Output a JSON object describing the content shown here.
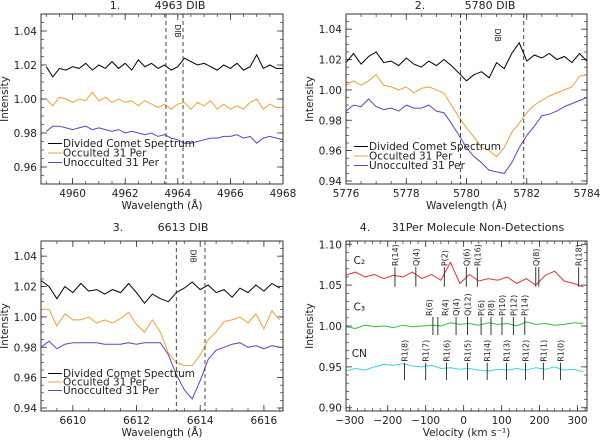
{
  "chart_data": [
    {
      "type": "line",
      "panel_number": "1.",
      "title": "4963 DIB",
      "xlabel": "Wavelength (Å)",
      "ylabel": "Intensity",
      "xlim": [
        4958.8,
        4968
      ],
      "ylim": [
        0.95,
        1.05
      ],
      "xticks": [
        4960,
        4962,
        4964,
        4966,
        4968
      ],
      "xtick_labels": [
        "4960",
        "4962",
        "4964",
        "4966",
        "4968"
      ],
      "xminor": 0.5,
      "yticks": [
        0.96,
        0.98,
        1.0,
        1.02,
        1.04
      ],
      "ytick_labels": [
        "0.96",
        "0.98",
        "1.00",
        "1.02",
        "1.04"
      ],
      "yminor": 0.005,
      "dib_lines": [
        4963.55,
        4964.2
      ],
      "dib_label": "DIB",
      "dib_label_pos": [
        4163.9,
        1.04
      ],
      "series": [
        {
          "name": "Divided Comet Spectrum",
          "color": "#000000",
          "x_start": 4959,
          "x_step": 0.25,
          "values": [
            1.019,
            1.013,
            1.018,
            1.017,
            1.019,
            1.018,
            1.021,
            1.017,
            1.02,
            1.018,
            1.022,
            1.018,
            1.021,
            1.017,
            1.023,
            1.019,
            1.021,
            1.018,
            1.02,
            1.017,
            1.019,
            1.024,
            1.022,
            1.02,
            1.021,
            1.019,
            1.017,
            1.02,
            1.018,
            1.021,
            1.017,
            1.019,
            1.026,
            1.018,
            1.02,
            1.018,
            1.018
          ]
        },
        {
          "name": "Occulted 31 Per",
          "color": "#f5a030",
          "x_start": 4959,
          "x_step": 0.25,
          "values": [
            1.0,
            0.996,
            1.001,
            1.0,
            0.998,
            1.0,
            0.999,
            1.004,
            0.999,
            1.001,
            0.998,
            1.0,
            0.998,
            0.999,
            0.996,
            0.999,
            0.997,
            0.995,
            0.997,
            0.994,
            0.997,
            0.998,
            0.994,
            0.998,
            0.996,
            0.999,
            0.994,
            0.997,
            0.994,
            0.996,
            0.994,
            0.998,
            1.0,
            0.994,
            0.997,
            0.995,
            0.995
          ]
        },
        {
          "name": "Unocculted 31 Per",
          "color": "#6a3cc8",
          "x_start": 4959,
          "x_step": 0.25,
          "values": [
            0.981,
            0.984,
            0.984,
            0.983,
            0.982,
            0.983,
            0.984,
            0.982,
            0.983,
            0.982,
            0.981,
            0.982,
            0.98,
            0.981,
            0.98,
            0.979,
            0.98,
            0.978,
            0.979,
            0.977,
            0.976,
            0.974,
            0.974,
            0.975,
            0.976,
            0.977,
            0.977,
            0.978,
            0.978,
            0.979,
            0.977,
            0.978,
            0.974,
            0.977,
            0.978,
            0.977,
            0.976
          ]
        }
      ]
    },
    {
      "type": "line",
      "panel_number": "2.",
      "title": "5780 DIB",
      "xlabel": "Wavelength (Å)",
      "ylabel": "Intensity",
      "xlim": [
        5776,
        5784
      ],
      "ylim": [
        0.938,
        1.05
      ],
      "xticks": [
        5776,
        5778,
        5780,
        5782,
        5784
      ],
      "xtick_labels": [
        "5776",
        "5778",
        "5780",
        "5782",
        "5784"
      ],
      "xminor": 0.5,
      "yticks": [
        0.94,
        0.96,
        0.98,
        1.0,
        1.02,
        1.04
      ],
      "ytick_labels": [
        "0.94",
        "0.96",
        "0.98",
        "1.00",
        "1.02",
        "1.04"
      ],
      "yminor": 0.005,
      "dib_lines": [
        5779.8,
        5781.9
      ],
      "dib_label": "DIB",
      "series": [
        {
          "name": "Divided Comet Spectrum",
          "color": "#000000",
          "x_start": 5776,
          "x_step": 0.25,
          "values": [
            1.018,
            1.024,
            1.017,
            1.022,
            1.025,
            1.018,
            1.019,
            1.016,
            1.021,
            1.017,
            1.015,
            1.019,
            1.016,
            1.02,
            1.016,
            1.011,
            1.006,
            1.01,
            1.012,
            1.008,
            1.018,
            1.014,
            1.024,
            1.031,
            1.019,
            1.023,
            1.021,
            1.024,
            1.02,
            1.022,
            1.018,
            1.024,
            1.019
          ]
        },
        {
          "name": "Occulted 31 Per",
          "color": "#f5a030",
          "x_start": 5776,
          "x_step": 0.25,
          "values": [
            1.003,
            1.006,
            1.003,
            1.006,
            1.01,
            1.003,
            1.002,
            1.0,
            1.002,
            0.998,
            1.001,
            1.002,
            1.0,
            0.998,
            0.99,
            0.982,
            0.975,
            0.969,
            0.962,
            0.96,
            0.956,
            0.962,
            0.972,
            0.978,
            0.985,
            0.99,
            0.993,
            0.996,
            0.998,
            1.0,
            1.002,
            1.009,
            1.01
          ]
        },
        {
          "name": "Unocculted 31 Per",
          "color": "#6a3cc8",
          "x_start": 5776,
          "x_step": 0.25,
          "values": [
            0.986,
            0.99,
            0.989,
            0.994,
            0.989,
            0.987,
            0.988,
            0.986,
            0.99,
            0.988,
            0.988,
            0.99,
            0.986,
            0.985,
            0.978,
            0.97,
            0.962,
            0.956,
            0.952,
            0.947,
            0.946,
            0.945,
            0.952,
            0.962,
            0.97,
            0.976,
            0.983,
            0.984,
            0.986,
            0.989,
            0.991,
            0.993,
            0.995
          ]
        }
      ]
    },
    {
      "type": "line",
      "panel_number": "3.",
      "title": "6613 DIB",
      "xlabel": "Wavelength (Å)",
      "ylabel": "Intensity",
      "xlim": [
        6609,
        6616.6
      ],
      "ylim": [
        0.938,
        1.05
      ],
      "xticks": [
        6610,
        6612,
        6614,
        6616
      ],
      "xtick_labels": [
        "6610",
        "6612",
        "6614",
        "6616"
      ],
      "xminor": 0.5,
      "yticks": [
        0.94,
        0.96,
        0.98,
        1.0,
        1.02,
        1.04
      ],
      "ytick_labels": [
        "0.94",
        "0.96",
        "0.98",
        "1.00",
        "1.02",
        "1.04"
      ],
      "yminor": 0.005,
      "dib_lines": [
        6613.25,
        6614.15
      ],
      "dib_label": "DIB",
      "series": [
        {
          "name": "Divided Comet Spectrum",
          "color": "#000000",
          "x_start": 6609,
          "x_step": 0.25,
          "values": [
            1.024,
            1.02,
            1.012,
            1.02,
            1.016,
            1.022,
            1.017,
            1.018,
            1.015,
            1.018,
            1.016,
            1.022,
            1.016,
            1.009,
            1.015,
            1.012,
            1.01,
            1.016,
            1.019,
            1.023,
            1.018,
            1.021,
            1.016,
            1.018,
            1.013,
            1.019,
            1.016,
            1.021,
            1.017,
            1.022,
            1.019
          ]
        },
        {
          "name": "Occulted 31 Per",
          "color": "#f5a030",
          "x_start": 6609,
          "x_step": 0.25,
          "values": [
            1.005,
            1.005,
            0.994,
            1.002,
            0.998,
            0.998,
            1.0,
            0.996,
            0.998,
            0.996,
            0.999,
            1.003,
            0.995,
            0.99,
            0.998,
            0.99,
            0.976,
            0.97,
            0.968,
            0.968,
            0.975,
            0.985,
            0.99,
            0.997,
            0.998,
            1.0,
            0.996,
            1.002,
            0.992,
            1.004,
            0.998
          ]
        },
        {
          "name": "Unocculted 31 Per",
          "color": "#6a3cc8",
          "x_start": 6609,
          "x_step": 0.25,
          "values": [
            0.98,
            0.984,
            0.979,
            0.982,
            0.983,
            0.983,
            0.983,
            0.983,
            0.982,
            0.982,
            0.982,
            0.983,
            0.982,
            0.983,
            0.983,
            0.983,
            0.975,
            0.962,
            0.952,
            0.946,
            0.958,
            0.972,
            0.978,
            0.98,
            0.982,
            0.983,
            0.98,
            0.981,
            0.979,
            0.981,
            0.98
          ]
        }
      ]
    },
    {
      "type": "line",
      "panel_number": "4.",
      "title": "31Per Molecule Non-Detections",
      "xlabel": "Velocity (km s⁻¹)",
      "ylabel": "Intensity",
      "xlim": [
        -310,
        325
      ],
      "ylim": [
        0.896,
        1.104
      ],
      "xticks": [
        -300,
        -200,
        -100,
        0,
        100,
        200,
        300
      ],
      "xtick_labels": [
        "−300",
        "−200",
        "−100",
        "0",
        "100",
        "200",
        "300"
      ],
      "xminor": 20,
      "yticks": [
        0.9,
        0.95,
        1.0,
        1.05,
        1.1
      ],
      "ytick_labels": [
        "0.90",
        "0.95",
        "1.00",
        "1.05",
        "1.10"
      ],
      "yminor": 0.01,
      "series": [
        {
          "name": "C2",
          "color": "#e8303a",
          "x_start": -310,
          "x_step": 25,
          "values": [
            1.062,
            1.066,
            1.06,
            1.063,
            1.058,
            1.062,
            1.06,
            1.066,
            1.058,
            1.063,
            1.056,
            1.078,
            1.052,
            1.063,
            1.055,
            1.058,
            1.056,
            1.06,
            1.052,
            1.058,
            1.05,
            1.062,
            1.067,
            1.055,
            1.052,
            1.048
          ]
        },
        {
          "name": "C3",
          "color": "#30c030",
          "x_start": -310,
          "x_step": 25,
          "values": [
            0.999,
            0.997,
            1.001,
            0.999,
            1.0,
            0.998,
            1.001,
            0.999,
            1.0,
            1.001,
            1.0,
            1.004,
            1.002,
            1.003,
            1.001,
            1.004,
            1.002,
            1.003,
            1.0,
            1.005,
            1.002,
            1.003,
            1.001,
            1.002,
            1.004,
            1.003
          ]
        },
        {
          "name": "CN",
          "color": "#30d8e0",
          "x_start": -310,
          "x_step": 25,
          "values": [
            0.945,
            0.948,
            0.946,
            0.95,
            0.953,
            0.952,
            0.954,
            0.951,
            0.95,
            0.952,
            0.948,
            0.949,
            0.947,
            0.948,
            0.946,
            0.945,
            0.947,
            0.946,
            0.948,
            0.946,
            0.949,
            0.947,
            0.95,
            0.946,
            0.947,
            0.944
          ]
        }
      ],
      "molecules": [
        {
          "label": "C₂",
          "label_pos": [
            -275,
            1.076
          ],
          "range": [
            1.048,
            1.072
          ],
          "lines": [
            {
              "label": "R(14)",
              "v": -181
            },
            {
              "label": "Q(4)",
              "v": -126
            },
            {
              "label": "P(2)",
              "v": -51
            },
            {
              "label": "Q(6)",
              "v": 7
            },
            {
              "label": "R(16)",
              "v": 36
            },
            {
              "label": "Q(8)",
              "v": 190
            },
            {
              "label": "",
              "v": 198
            },
            {
              "label": "R(18)",
              "v": 303
            }
          ]
        },
        {
          "label": "C₃",
          "label_pos": [
            -275,
            1.019
          ],
          "range": [
            0.989,
            1.011
          ],
          "lines": [
            {
              "label": "R(6)",
              "v": -81
            },
            {
              "label": "R(4)",
              "v": -68
            },
            {
              "label": "Q(4)",
              "v": -20
            },
            {
              "label": "Q(12)",
              "v": 10
            },
            {
              "label": "P(6)",
              "v": 46
            },
            {
              "label": "P(8)",
              "v": 72
            },
            {
              "label": "P(10)",
              "v": 101
            },
            {
              "label": "P(12)",
              "v": 131
            },
            {
              "label": "P(14)",
              "v": 161
            }
          ]
        },
        {
          "label": "CN",
          "label_pos": [
            -275,
            0.962
          ],
          "range": [
            0.934,
            0.955
          ],
          "lines": [
            {
              "label": "R1(8)",
              "v": -156
            },
            {
              "label": "R1(7)",
              "v": -100
            },
            {
              "label": "R1(6)",
              "v": -45
            },
            {
              "label": "R1(5)",
              "v": 10
            },
            {
              "label": "R1(4)",
              "v": 62
            },
            {
              "label": "R1(3)",
              "v": 113
            },
            {
              "label": "R1(2)",
              "v": 163
            },
            {
              "label": "R1(1)",
              "v": 210
            },
            {
              "label": "R1(0)",
              "v": 255
            }
          ]
        }
      ]
    }
  ]
}
